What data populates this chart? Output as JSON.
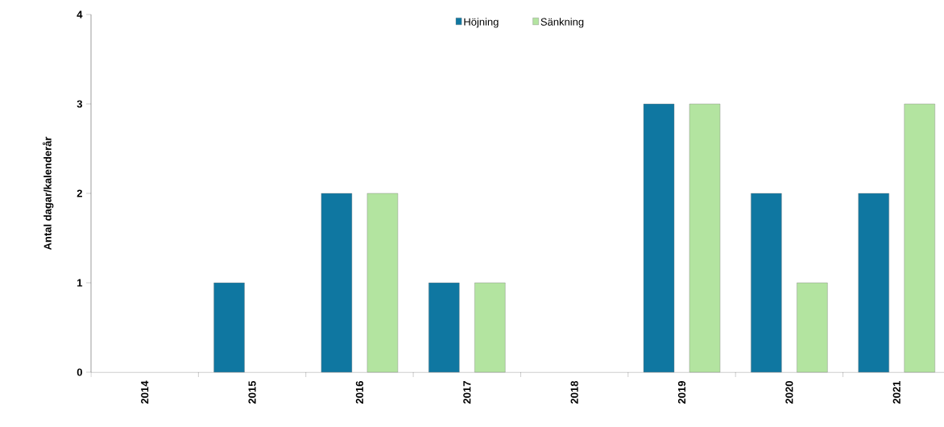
{
  "chart_data": {
    "type": "bar",
    "ylabel": "Antal dagar/kalenderår",
    "categories": [
      "2014",
      "2015",
      "2016",
      "2017",
      "2018",
      "2019",
      "2020",
      "2021"
    ],
    "series": [
      {
        "name": "Höjning",
        "color": "#0f77a1",
        "values": [
          0,
          1,
          2,
          1,
          0,
          3,
          2,
          2
        ]
      },
      {
        "name": "Sänkning",
        "color": "#b3e4a0",
        "values": [
          0,
          0,
          2,
          1,
          0,
          3,
          1,
          3
        ]
      }
    ],
    "ylim": [
      0,
      4
    ],
    "yticks": [
      0,
      1,
      2,
      3,
      4
    ],
    "grid": false,
    "legend": "top"
  }
}
